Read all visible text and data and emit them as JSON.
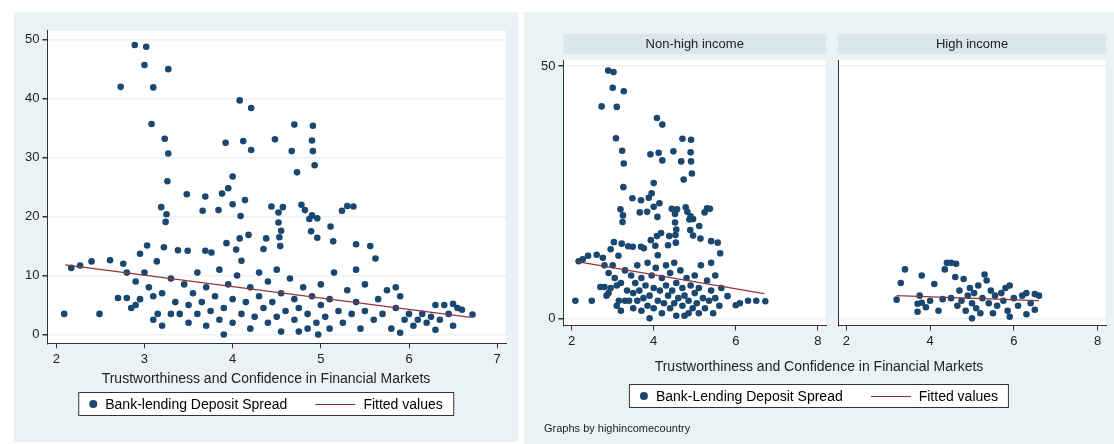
{
  "chart_data": [
    {
      "type": "scatter",
      "xlabel": "Trustworthiness and Confidence in Financial Markets",
      "xlim": [
        1.9,
        7.1
      ],
      "xticks": [
        2,
        3,
        4,
        5,
        6,
        7
      ],
      "ylim": [
        -1.5,
        51.5
      ],
      "yticks": [
        0,
        10,
        20,
        30,
        40,
        50
      ],
      "grid": "y",
      "legend": "bottom",
      "series": [
        {
          "name": "Bank-lending Deposit Spread",
          "color": "#1a476f",
          "marker": "circle",
          "x": [
            2.89,
            3.02,
            3.0,
            3.27,
            2.73,
            3.1,
            3.08,
            4.08,
            4.21,
            3.23,
            3.27,
            3.92,
            4.12,
            4.21,
            4.48,
            4.7,
            4.91,
            4.9,
            4.91,
            4.67,
            4.93,
            4.73,
            3.26,
            4.0,
            3.95,
            3.48,
            3.69,
            3.88,
            4.14,
            4.0,
            3.19,
            3.66,
            3.84,
            4.09,
            3.25,
            3.24,
            4.44,
            4.57,
            4.52,
            4.78,
            4.82,
            4.9,
            4.87,
            4.96,
            4.52,
            4.55,
            4.53,
            4.89,
            4.96,
            5.11,
            5.24,
            5.3,
            5.37,
            5.14,
            4.08,
            4.18,
            4.38,
            4.54,
            3.93,
            3.03,
            3.22,
            2.95,
            3.14,
            3.38,
            3.49,
            3.69,
            3.76,
            4.04,
            4.35,
            5.4,
            5.56,
            5.62,
            5.85,
            5.9,
            6.72,
            2.09,
            2.49,
            2.4,
            2.61,
            2.17,
            2.27,
            2.76,
            3.9,
            4.97,
            6.3,
            2.7,
            2.8,
            2.85,
            2.9,
            2.95,
            2.8,
            2.9,
            3.0,
            3.05,
            3.1,
            3.1,
            3.2,
            3.15,
            3.2,
            3.3,
            3.3,
            3.35,
            3.4,
            3.45,
            3.5,
            3.5,
            3.55,
            3.6,
            3.6,
            3.65,
            3.7,
            3.7,
            3.75,
            3.8,
            3.85,
            3.85,
            3.9,
            3.95,
            4.0,
            4.0,
            4.05,
            4.1,
            4.1,
            4.15,
            4.2,
            4.2,
            4.25,
            4.3,
            4.3,
            4.35,
            4.4,
            4.4,
            4.45,
            4.5,
            4.5,
            4.55,
            4.55,
            4.6,
            4.65,
            4.7,
            4.7,
            4.75,
            4.75,
            4.8,
            4.85,
            4.85,
            4.9,
            4.95,
            5.0,
            5.0,
            5.05,
            5.1,
            5.1,
            5.15,
            5.2,
            5.25,
            5.3,
            5.35,
            5.4,
            5.4,
            5.45,
            5.5,
            5.5,
            5.6,
            5.65,
            5.7,
            5.75,
            5.8,
            5.85,
            5.9,
            5.95,
            6.0,
            6.05,
            6.1,
            6.15,
            6.2,
            6.25,
            6.3,
            6.35,
            6.4,
            6.45,
            6.5,
            6.5,
            6.55,
            6.6
          ],
          "values": [
            49.1,
            48.8,
            45.7,
            45.0,
            42.0,
            41.9,
            35.7,
            39.7,
            38.4,
            33.2,
            30.7,
            32.5,
            32.8,
            31.3,
            33.1,
            35.6,
            35.4,
            32.9,
            31.1,
            31.1,
            28.7,
            27.5,
            26.0,
            26.8,
            24.8,
            23.8,
            23.4,
            23.9,
            22.8,
            22.1,
            21.6,
            21.0,
            21.1,
            20.1,
            20.4,
            19.1,
            21.7,
            21.6,
            20.7,
            22.0,
            21.1,
            20.2,
            19.6,
            19.7,
            19.0,
            17.6,
            16.5,
            17.5,
            16.4,
            18.3,
            21.0,
            21.8,
            21.7,
            15.8,
            16.3,
            16.9,
            16.3,
            15.0,
            15.5,
            15.1,
            14.8,
            13.7,
            12.4,
            14.3,
            14.2,
            14.2,
            13.9,
            14.4,
            14.5,
            15.3,
            15.0,
            12.9,
            8.0,
            0.3,
            3.4,
            3.5,
            3.5,
            12.4,
            12.6,
            11.3,
            11.7,
            12.0,
            0.0,
            0.0,
            0.8,
            6.2,
            6.2,
            4.5,
            5.0,
            6.0,
            10.5,
            9.0,
            10.5,
            8.0,
            6.5,
            2.5,
            1.5,
            3.5,
            7.0,
            3.5,
            9.5,
            5.5,
            3.5,
            8.5,
            2.0,
            5.0,
            7.0,
            3.5,
            10.5,
            5.5,
            1.5,
            8.0,
            4.0,
            6.5,
            2.5,
            11.0,
            4.5,
            8.5,
            2.0,
            6.0,
            10.0,
            3.5,
            12.5,
            5.5,
            1.0,
            8.0,
            3.0,
            6.5,
            10.5,
            4.5,
            2.0,
            9.0,
            5.5,
            3.0,
            11.0,
            0.5,
            7.0,
            4.0,
            9.5,
            2.5,
            6.0,
            0.5,
            4.5,
            8.0,
            1.0,
            3.5,
            6.5,
            2.0,
            5.0,
            8.5,
            3.0,
            1.0,
            6.0,
            10.5,
            4.0,
            2.0,
            7.5,
            3.5,
            5.5,
            11.0,
            1.0,
            4.0,
            8.5,
            2.5,
            6.0,
            3.5,
            7.5,
            1.0,
            4.5,
            6.5,
            2.5,
            3.5,
            1.5,
            2.5,
            3.5,
            2.0,
            3.0,
            5.0,
            2.5,
            5.0,
            3.5,
            1.5,
            5.2,
            4.5,
            4.2
          ]
        },
        {
          "name": "Fitted values",
          "type": "line",
          "color": "#90353b",
          "marker": "none",
          "x": [
            2.1,
            6.7
          ],
          "values": [
            11.8,
            2.9
          ]
        }
      ]
    },
    {
      "type": "scatter",
      "title": "Non-high income",
      "xlabel": "Trustworthiness and Confidence in Financial Markets",
      "xlim": [
        1.8,
        8.2
      ],
      "xticks": [
        2,
        4,
        6,
        8
      ],
      "ylim": [
        -1.4,
        51.2
      ],
      "yticks": [
        0,
        50
      ],
      "grid": "y",
      "legend": "bottom",
      "annotations": [
        "Graphs by highincomecountry"
      ],
      "series": [
        {
          "name": "Bank-Lending Deposit Spread",
          "color": "#1a476f",
          "marker": "circle",
          "x": [
            2.89,
            3.02,
            3.0,
            3.27,
            2.73,
            3.1,
            3.08,
            4.08,
            4.21,
            3.23,
            3.27,
            3.92,
            4.12,
            4.21,
            4.48,
            4.7,
            4.91,
            4.9,
            4.91,
            4.67,
            4.93,
            4.73,
            3.26,
            4.0,
            3.95,
            3.48,
            3.69,
            3.88,
            4.14,
            4.0,
            3.19,
            3.66,
            3.84,
            4.09,
            3.25,
            3.24,
            4.44,
            4.57,
            4.52,
            4.78,
            4.82,
            4.9,
            4.87,
            4.96,
            4.52,
            4.55,
            4.53,
            4.89,
            4.96,
            5.11,
            5.24,
            5.3,
            5.37,
            5.14,
            4.08,
            4.18,
            4.38,
            4.54,
            3.93,
            3.03,
            3.22,
            2.95,
            3.14,
            3.38,
            3.49,
            3.69,
            3.76,
            4.04,
            4.35,
            5.4,
            5.56,
            5.62,
            6.72,
            2.09,
            2.49,
            2.4,
            2.61,
            2.17,
            2.27,
            2.76,
            3.9,
            2.7,
            2.8,
            2.85,
            2.9,
            2.95,
            2.8,
            2.9,
            3.0,
            3.05,
            3.1,
            3.1,
            3.2,
            3.15,
            3.2,
            3.3,
            3.3,
            3.35,
            3.4,
            3.45,
            3.5,
            3.5,
            3.55,
            3.6,
            3.6,
            3.65,
            3.7,
            3.7,
            3.75,
            3.8,
            3.85,
            3.85,
            3.9,
            3.95,
            4.0,
            4.0,
            4.05,
            4.1,
            4.1,
            4.15,
            4.2,
            4.2,
            4.25,
            4.3,
            4.3,
            4.35,
            4.4,
            4.4,
            4.45,
            4.5,
            4.5,
            4.55,
            4.55,
            4.6,
            4.65,
            4.7,
            4.7,
            4.75,
            4.75,
            4.8,
            4.85,
            4.85,
            4.9,
            4.95,
            5.0,
            5.0,
            5.05,
            5.1,
            5.1,
            5.15,
            5.2,
            5.25,
            5.3,
            5.35,
            5.4,
            5.4,
            5.45,
            5.5,
            5.5,
            5.6,
            5.65,
            5.8,
            6.0,
            6.1,
            6.3,
            6.5
          ],
          "values": [
            49.1,
            48.8,
            45.7,
            45.0,
            42.0,
            41.9,
            35.7,
            39.7,
            38.4,
            33.2,
            30.7,
            32.5,
            32.8,
            31.3,
            33.1,
            35.6,
            35.4,
            32.9,
            31.1,
            31.1,
            28.7,
            27.5,
            26.0,
            26.8,
            24.8,
            23.8,
            23.4,
            23.9,
            22.8,
            22.1,
            21.6,
            21.0,
            21.1,
            20.1,
            20.4,
            19.1,
            21.7,
            21.6,
            20.7,
            22.0,
            21.1,
            20.2,
            19.6,
            19.7,
            19.0,
            17.6,
            16.5,
            17.5,
            16.4,
            18.3,
            21.0,
            21.8,
            21.7,
            15.8,
            16.3,
            16.9,
            16.3,
            15.0,
            15.5,
            15.1,
            14.8,
            13.7,
            12.4,
            14.3,
            14.2,
            14.2,
            13.9,
            14.4,
            14.5,
            15.3,
            15.0,
            12.9,
            3.4,
            3.5,
            3.5,
            12.4,
            12.6,
            11.3,
            11.7,
            12.0,
            0.0,
            6.2,
            6.2,
            4.5,
            5.0,
            6.0,
            10.5,
            9.0,
            10.5,
            8.0,
            6.5,
            2.5,
            1.5,
            3.5,
            7.0,
            3.5,
            9.5,
            5.5,
            3.5,
            8.5,
            2.0,
            5.0,
            7.0,
            3.5,
            10.5,
            5.5,
            1.5,
            8.0,
            4.0,
            6.5,
            2.5,
            11.0,
            4.5,
            8.5,
            2.0,
            6.0,
            10.0,
            3.5,
            12.5,
            5.5,
            1.0,
            8.0,
            3.0,
            6.5,
            10.5,
            4.5,
            2.0,
            9.0,
            5.5,
            3.0,
            11.0,
            0.5,
            7.0,
            4.0,
            9.5,
            2.5,
            6.0,
            0.5,
            4.5,
            8.0,
            1.0,
            3.5,
            6.5,
            2.0,
            5.0,
            8.5,
            3.0,
            1.0,
            6.0,
            10.5,
            4.0,
            2.0,
            7.5,
            3.5,
            5.5,
            11.0,
            1.0,
            4.0,
            8.5,
            2.5,
            6.0,
            4.4,
            2.6,
            3.0,
            3.5,
            3.5
          ]
        },
        {
          "name": "Fitted values",
          "type": "line",
          "color": "#90353b",
          "marker": "none",
          "x": [
            2.1,
            6.7
          ],
          "values": [
            11.3,
            4.9
          ]
        }
      ]
    },
    {
      "type": "scatter",
      "title": "High income",
      "xlim": [
        1.8,
        8.2
      ],
      "xticks": [
        2,
        4,
        6,
        8
      ],
      "ylim": [
        -1.4,
        51.2
      ],
      "yticks": [
        0,
        50
      ],
      "grid": "y",
      "tick_labels": "x",
      "series": [
        {
          "color": "#1a476f",
          "marker": "circle",
          "x": [
            3.2,
            3.3,
            3.4,
            3.7,
            3.7,
            3.75,
            3.8,
            3.8,
            3.9,
            4.0,
            4.1,
            4.2,
            4.3,
            4.35,
            4.4,
            4.5,
            4.62,
            4.5,
            4.6,
            4.65,
            4.7,
            4.75,
            4.8,
            4.85,
            4.9,
            4.95,
            5.0,
            5.0,
            5.05,
            5.1,
            5.15,
            5.2,
            5.25,
            5.3,
            5.35,
            5.4,
            5.45,
            5.5,
            5.55,
            5.6,
            5.7,
            5.75,
            5.8,
            5.85,
            5.9,
            5.9,
            6.0,
            6.1,
            6.2,
            6.3,
            6.3,
            6.4,
            6.5,
            6.5,
            6.6
          ],
          "values": [
            3.7,
            7.0,
            9.7,
            1.3,
            2.9,
            4.5,
            8.5,
            3.1,
            2.2,
            3.5,
            6.8,
            1.5,
            3.8,
            9.7,
            11.0,
            11.0,
            10.8,
            4.0,
            8.2,
            2.5,
            5.5,
            3.5,
            7.8,
            1.5,
            4.5,
            6.0,
            0.0,
            3.0,
            5.0,
            2.0,
            6.5,
            1.0,
            4.0,
            8.7,
            7.5,
            3.0,
            5.5,
            1.0,
            4.5,
            2.5,
            5.0,
            3.5,
            6.0,
            1.5,
            6.5,
            0.3,
            4.0,
            2.5,
            4.5,
            0.8,
            5.0,
            3.0,
            1.7,
            4.8,
            4.5
          ]
        },
        {
          "type": "line",
          "color": "#90353b",
          "marker": "none",
          "x": [
            3.2,
            6.6
          ],
          "values": [
            4.5,
            3.5
          ]
        }
      ]
    }
  ]
}
